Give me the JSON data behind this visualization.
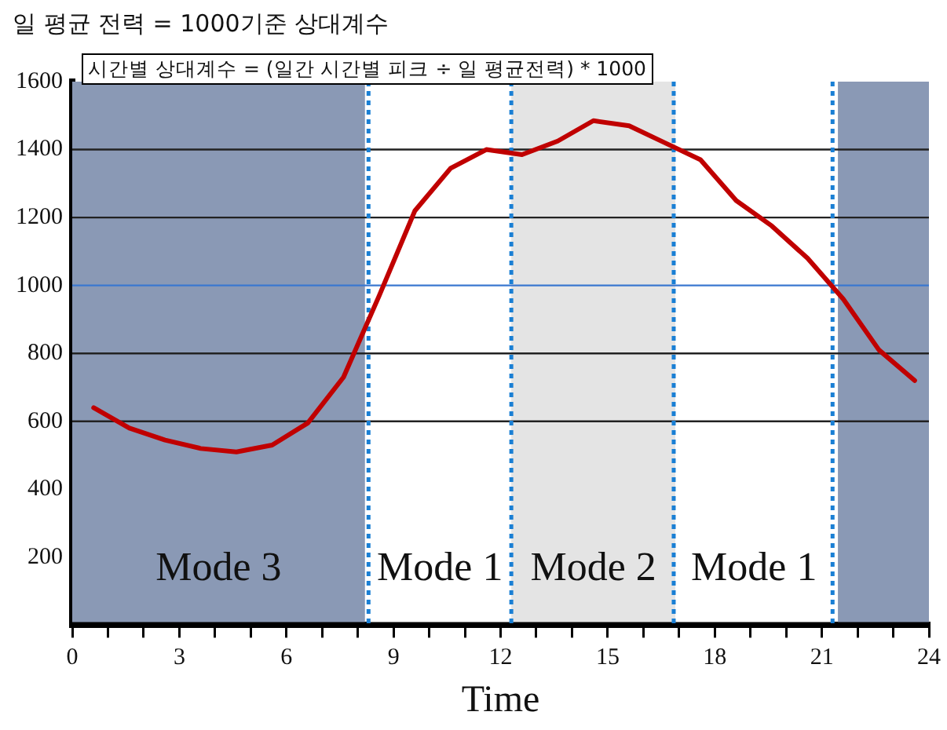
{
  "chart_data": {
    "type": "line",
    "title": "일 평균 전력 = 1000기준 상대계수",
    "subtitle": "시간별 상대계수 =  (일간 시간별 피크 ÷ 일 평균전력) * 1000",
    "xlabel": "Time",
    "x": [
      0.6,
      1.6,
      2.6,
      3.6,
      4.6,
      5.6,
      6.6,
      7.6,
      8.6,
      9.6,
      10.6,
      11.6,
      12.6,
      13.6,
      14.6,
      15.6,
      16.6,
      17.6,
      18.6,
      19.6,
      20.6,
      21.6,
      22.6,
      23.6
    ],
    "series": [
      {
        "color": "#c00000",
        "values": [
          640,
          580,
          545,
          520,
          510,
          530,
          595,
          730,
          970,
          1220,
          1345,
          1400,
          1385,
          1425,
          1485,
          1470,
          1420,
          1370,
          1250,
          1175,
          1080,
          960,
          810,
          720
        ]
      }
    ],
    "xlim": [
      0,
      24
    ],
    "ylim": [
      0,
      1600
    ],
    "xticks": [
      0,
      {
        "value": 1,
        "label": null
      },
      {
        "value": 2,
        "label": null
      },
      3,
      {
        "value": 4,
        "label": null
      },
      {
        "value": 5,
        "label": null
      },
      6,
      {
        "value": 7,
        "label": null
      },
      {
        "value": 8,
        "label": null
      },
      9,
      {
        "value": 10,
        "label": null
      },
      {
        "value": 11,
        "label": null
      },
      12,
      {
        "value": 13,
        "label": null
      },
      {
        "value": 14,
        "label": null
      },
      15,
      {
        "value": 16,
        "label": null
      },
      {
        "value": 17,
        "label": null
      },
      18,
      {
        "value": 19,
        "label": null
      },
      {
        "value": 20,
        "label": null
      },
      21,
      {
        "value": 22,
        "label": null
      },
      {
        "value": 23,
        "label": null
      },
      24
    ],
    "yticks": [
      200,
      400,
      600,
      800,
      1000,
      1200,
      1400,
      1600
    ],
    "bands": [
      {
        "axis": "x",
        "from": 0,
        "to": 8.2,
        "label": "Mode 3",
        "color": "#8a99b5"
      },
      {
        "axis": "x",
        "from": 8.3,
        "to": 12.3,
        "label": "Mode 1",
        "color": "#ffffff"
      },
      {
        "axis": "x",
        "from": 12.3,
        "to": 16.9,
        "label": "Mode 2",
        "color": "#e4e4e4"
      },
      {
        "axis": "x",
        "from": 16.9,
        "to": 21.3,
        "label": "Mode 1",
        "color": "#ffffff"
      },
      {
        "axis": "x",
        "from": 21.45,
        "to": 24,
        "color": "#8a99b5"
      }
    ],
    "ref_lines": [
      {
        "axis": "y",
        "value": 600,
        "color": "#222222",
        "line_style": "solid"
      },
      {
        "axis": "y",
        "value": 800,
        "color": "#222222",
        "line_style": "solid"
      },
      {
        "axis": "y",
        "value": 1200,
        "color": "#222222",
        "line_style": "solid"
      },
      {
        "axis": "y",
        "value": 1400,
        "color": "#222222",
        "line_style": "solid"
      },
      {
        "axis": "y",
        "value": 1000,
        "color": "#3a78d0",
        "line_style": "solid"
      },
      {
        "axis": "x",
        "value": 8.3,
        "color": "#1a7fd4",
        "line_style": "dotted"
      },
      {
        "axis": "x",
        "value": 12.3,
        "color": "#1a7fd4",
        "line_style": "dotted"
      },
      {
        "axis": "x",
        "value": 16.85,
        "color": "#1a7fd4",
        "line_style": "dotted"
      },
      {
        "axis": "x",
        "value": 21.3,
        "color": "#1a7fd4",
        "line_style": "dotted"
      }
    ],
    "grid": false,
    "legend": false,
    "marker": "none",
    "line_style": "solid"
  }
}
